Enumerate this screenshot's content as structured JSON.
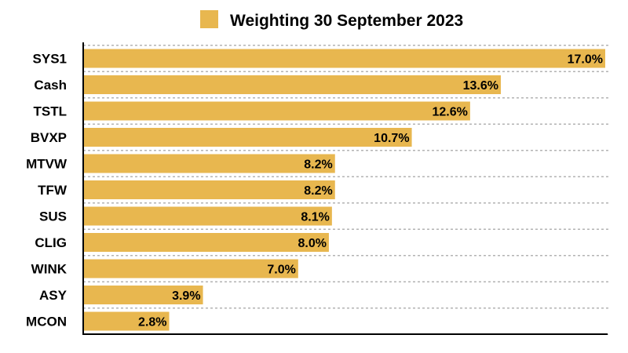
{
  "chart_data": {
    "type": "bar",
    "orientation": "horizontal",
    "categories": [
      "SYS1",
      "Cash",
      "TSTL",
      "BVXP",
      "MTVW",
      "TFW",
      "SUS",
      "CLIG",
      "WINK",
      "ASY",
      "MCON"
    ],
    "series": [
      {
        "name": "Weighting 30 September 2023",
        "values": [
          17.0,
          13.6,
          12.6,
          10.7,
          8.2,
          8.2,
          8.1,
          8.0,
          7.0,
          3.9,
          2.8
        ],
        "labels": [
          "17.0%",
          "13.6%",
          "12.6%",
          "10.7%",
          "8.2%",
          "8.2%",
          "8.1%",
          "8.0%",
          "7.0%",
          "3.9%",
          "2.8%"
        ],
        "color": "#e8b74f"
      }
    ],
    "xlim": [
      0,
      17.0
    ],
    "grid": true,
    "legend_position": "top-center",
    "title": "",
    "xlabel": "",
    "ylabel": ""
  }
}
